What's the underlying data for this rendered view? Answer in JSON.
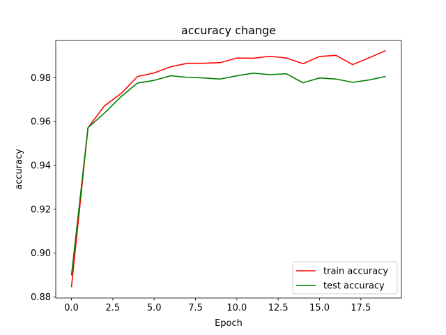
{
  "chart_data": {
    "type": "line",
    "title": "accuracy change",
    "xlabel": "Epoch",
    "ylabel": "accuracy",
    "x": [
      0,
      1,
      2,
      3,
      4,
      5,
      6,
      7,
      8,
      9,
      10,
      11,
      12,
      13,
      14,
      15,
      16,
      17,
      18,
      19
    ],
    "xlim": [
      -0.95,
      19.95
    ],
    "ylim": [
      0.8795,
      0.997
    ],
    "xticks": [
      0,
      2.5,
      5,
      7.5,
      10,
      12.5,
      15,
      17.5
    ],
    "xtick_labels": [
      "0.0",
      "2.5",
      "5.0",
      "7.5",
      "10.0",
      "12.5",
      "15.0",
      "17.5"
    ],
    "yticks": [
      0.88,
      0.9,
      0.92,
      0.94,
      0.96,
      0.98
    ],
    "ytick_labels": [
      "0.88",
      "0.90",
      "0.92",
      "0.94",
      "0.96",
      "0.98"
    ],
    "grid": false,
    "legend_position": "lower-right",
    "series": [
      {
        "name": "train accuracy",
        "color": "#ff0000",
        "values": [
          0.8845,
          0.9572,
          0.9672,
          0.9728,
          0.9806,
          0.9822,
          0.985,
          0.9866,
          0.9866,
          0.9869,
          0.989,
          0.9889,
          0.9898,
          0.989,
          0.9864,
          0.9897,
          0.9902,
          0.986,
          0.9891,
          0.9924
        ]
      },
      {
        "name": "test accuracy",
        "color": "#008000",
        "values": [
          0.8898,
          0.9572,
          0.9639,
          0.9714,
          0.9776,
          0.9788,
          0.9809,
          0.9802,
          0.9799,
          0.9794,
          0.9809,
          0.9821,
          0.9814,
          0.9818,
          0.9777,
          0.9799,
          0.9794,
          0.9779,
          0.979,
          0.9806
        ]
      }
    ]
  }
}
